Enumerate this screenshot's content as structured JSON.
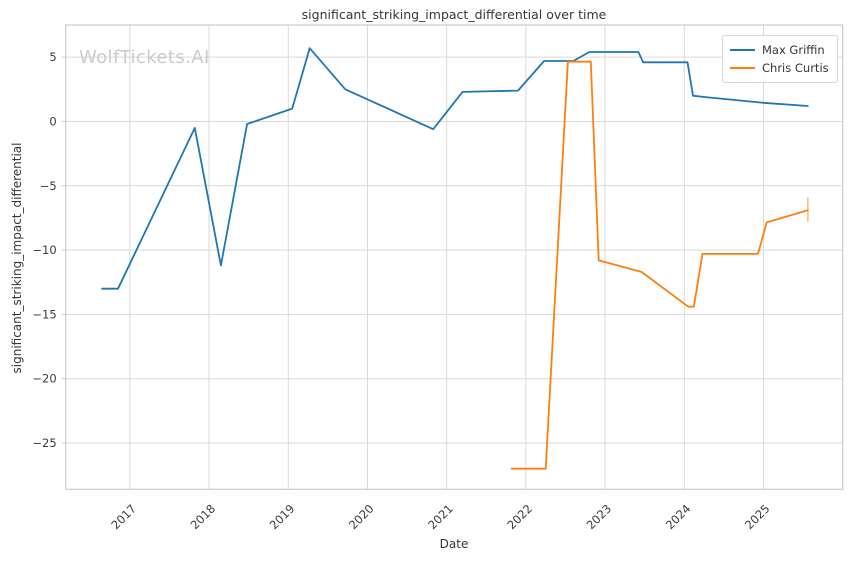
{
  "watermark": "WolfTickets.AI",
  "legend": {
    "items": [
      {
        "label": "Max Griffin",
        "color": "#1f77b4"
      },
      {
        "label": "Chris Curtis",
        "color": "#ff7f0e"
      }
    ]
  },
  "colors": {
    "background": "#ffffff",
    "grid": "#d9d9d9",
    "spine": "#cccccc",
    "tick_mark": "#cccccc",
    "title_text": "#363636",
    "tick_text": "#3c3c3c",
    "watermark": "#cbcbcb",
    "max_griffin": "#1f77b4",
    "chris_curtis": "#ff7f0e",
    "error_bar": "#ffbe85"
  },
  "chart_data": {
    "type": "line",
    "title": "significant_striking_impact_differential over time",
    "xlabel": "Date",
    "ylabel": "significant_striking_impact_differential",
    "xlim": [
      2016.19,
      2026.0
    ],
    "ylim": [
      -28.6,
      7.5
    ],
    "grid": true,
    "legend_position": "upper right",
    "x_ticks": [
      {
        "value": 2017,
        "label": "2017"
      },
      {
        "value": 2018,
        "label": "2018"
      },
      {
        "value": 2019,
        "label": "2019"
      },
      {
        "value": 2020,
        "label": "2020"
      },
      {
        "value": 2021,
        "label": "2021"
      },
      {
        "value": 2022,
        "label": "2022"
      },
      {
        "value": 2023,
        "label": "2023"
      },
      {
        "value": 2024,
        "label": "2024"
      },
      {
        "value": 2025,
        "label": "2025"
      }
    ],
    "y_ticks": [
      {
        "value": 5,
        "label": "5"
      },
      {
        "value": 0,
        "label": "0"
      },
      {
        "value": -5,
        "label": "−5"
      },
      {
        "value": -10,
        "label": "−10"
      },
      {
        "value": -15,
        "label": "−15"
      },
      {
        "value": -20,
        "label": "−20"
      },
      {
        "value": -25,
        "label": "−25"
      }
    ],
    "series": [
      {
        "name": "Max Griffin",
        "color": "#1f77b4",
        "points": [
          [
            2016.65,
            -13.0
          ],
          [
            2016.85,
            -13.0
          ],
          [
            2017.82,
            -0.5
          ],
          [
            2018.15,
            -11.2
          ],
          [
            2018.48,
            -0.2
          ],
          [
            2019.05,
            1.0
          ],
          [
            2019.27,
            5.7
          ],
          [
            2019.72,
            2.5
          ],
          [
            2020.83,
            -0.6
          ],
          [
            2021.2,
            2.3
          ],
          [
            2021.9,
            2.4
          ],
          [
            2022.23,
            4.7
          ],
          [
            2022.6,
            4.7
          ],
          [
            2022.8,
            5.4
          ],
          [
            2023.42,
            5.4
          ],
          [
            2023.48,
            4.6
          ],
          [
            2024.04,
            4.6
          ],
          [
            2024.11,
            2.0
          ],
          [
            2024.25,
            1.9
          ],
          [
            2025.0,
            1.45
          ],
          [
            2025.56,
            1.2
          ]
        ]
      },
      {
        "name": "Chris Curtis",
        "color": "#ff7f0e",
        "points": [
          [
            2021.82,
            -27.0
          ],
          [
            2022.25,
            -27.0
          ],
          [
            2022.53,
            4.65
          ],
          [
            2022.82,
            4.65
          ],
          [
            2022.92,
            -10.8
          ],
          [
            2023.46,
            -11.7
          ],
          [
            2024.05,
            -14.4
          ],
          [
            2024.12,
            -14.4
          ],
          [
            2024.23,
            -10.3
          ],
          [
            2024.93,
            -10.3
          ],
          [
            2025.04,
            -7.85
          ],
          [
            2025.56,
            -6.9
          ]
        ],
        "error_bar": {
          "x": 2025.56,
          "y_low": -7.8,
          "y_high": -5.9
        }
      }
    ]
  }
}
